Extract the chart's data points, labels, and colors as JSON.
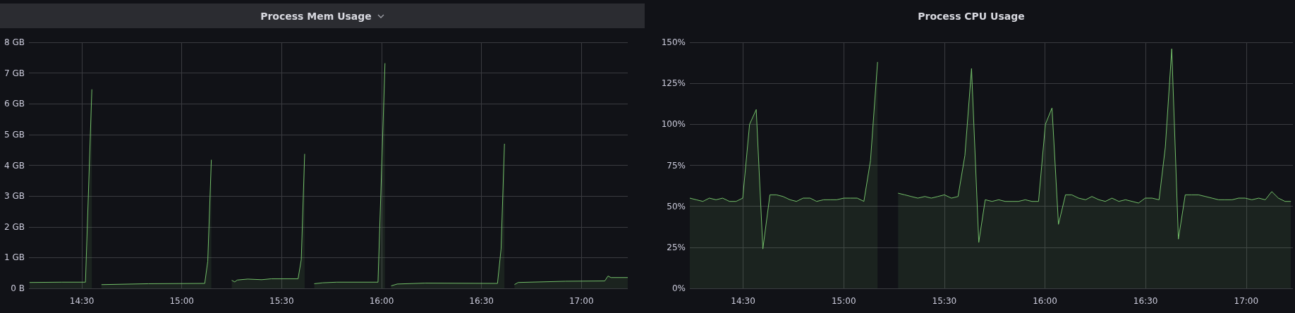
{
  "chart_data": [
    {
      "type": "area",
      "title": "Process Mem Usage",
      "x": [
        14.238,
        14.4,
        14.518,
        14.55,
        14.56,
        14.598,
        14.833,
        15.115,
        15.13,
        15.148,
        15.2,
        15.25,
        15.265,
        15.278,
        15.33,
        15.4,
        15.448,
        15.582,
        15.598,
        15.615,
        15.65,
        15.663,
        15.705,
        15.775,
        15.982,
        16.017,
        16.03,
        16.048,
        16.078,
        16.218,
        16.58,
        16.598,
        16.615,
        16.63,
        16.665,
        16.683,
        16.92,
        17.117,
        17.133,
        17.148,
        17.232
      ],
      "series": [
        {
          "color": "#73bf69",
          "values": [
            0.19,
            0.2,
            0.2,
            6.47,
            null,
            0.12,
            0.15,
            0.16,
            0.88,
            4.18,
            null,
            0.26,
            0.21,
            0.27,
            0.3,
            0.28,
            0.31,
            0.31,
            0.93,
            4.37,
            null,
            0.15,
            0.18,
            0.2,
            0.2,
            7.32,
            null,
            0.08,
            0.14,
            0.17,
            0.16,
            1.28,
            4.7,
            null,
            0.12,
            0.19,
            0.23,
            0.24,
            0.4,
            0.35,
            0.35
          ]
        }
      ],
      "xlim": [
        14.235,
        17.232
      ],
      "xticks": [
        {
          "value": 14.5,
          "label": "14:30"
        },
        {
          "value": 15,
          "label": "15:00"
        },
        {
          "value": 15.5,
          "label": "15:30"
        },
        {
          "value": 16,
          "label": "16:00"
        },
        {
          "value": 16.5,
          "label": "16:30"
        },
        {
          "value": 17,
          "label": "17:00"
        }
      ],
      "ylim": [
        0,
        8
      ],
      "yticks": [
        {
          "value": 0,
          "label": "0 B"
        },
        {
          "value": 1,
          "label": "1 GB"
        },
        {
          "value": 2,
          "label": "2 GB"
        },
        {
          "value": 3,
          "label": "3 GB"
        },
        {
          "value": 4,
          "label": "4 GB"
        },
        {
          "value": 5,
          "label": "5 GB"
        },
        {
          "value": 6,
          "label": "6 GB"
        },
        {
          "value": 7,
          "label": "7 GB"
        },
        {
          "value": 8,
          "label": "8 GB"
        }
      ],
      "grid": true
    },
    {
      "type": "area",
      "title": "Process CPU Usage",
      "x": [
        14.235,
        14.267,
        14.3,
        14.332,
        14.365,
        14.398,
        14.432,
        14.465,
        14.498,
        14.532,
        14.565,
        14.598,
        14.633,
        14.665,
        14.698,
        14.733,
        14.765,
        14.798,
        14.833,
        14.865,
        14.9,
        14.933,
        14.965,
        15.0,
        15.033,
        15.067,
        15.1,
        15.133,
        15.168,
        15.2,
        15.27,
        15.303,
        15.335,
        15.368,
        15.403,
        15.435,
        15.468,
        15.5,
        15.535,
        15.568,
        15.602,
        15.635,
        15.671,
        15.703,
        15.737,
        15.77,
        15.802,
        15.837,
        15.868,
        15.902,
        15.935,
        15.968,
        16.002,
        16.035,
        16.067,
        16.102,
        16.133,
        16.167,
        16.202,
        16.233,
        16.268,
        16.3,
        16.333,
        16.367,
        16.4,
        16.433,
        16.465,
        16.498,
        16.532,
        16.567,
        16.598,
        16.63,
        16.663,
        16.697,
        16.73,
        16.763,
        16.797,
        16.83,
        16.863,
        16.895,
        16.93,
        16.962,
        16.995,
        17.028,
        17.062,
        17.095,
        17.127,
        17.16,
        17.193,
        17.222
      ],
      "series": [
        {
          "color": "#73bf69",
          "values": [
            55,
            54,
            53,
            55,
            54,
            55,
            53,
            53,
            55,
            100,
            109,
            24,
            57,
            57,
            56,
            54,
            53,
            55,
            55,
            53,
            54,
            54,
            54,
            55,
            55,
            55,
            53,
            78,
            138,
            null,
            58,
            57,
            56,
            55,
            56,
            55,
            56,
            57,
            55,
            56,
            81,
            134,
            28,
            54,
            53,
            54,
            53,
            53,
            53,
            54,
            53,
            53,
            100,
            110,
            39,
            57,
            57,
            55,
            54,
            56,
            54,
            53,
            55,
            53,
            54,
            53,
            52,
            55,
            55,
            54,
            86,
            146,
            30,
            57,
            57,
            57,
            56,
            55,
            54,
            54,
            54,
            55,
            55,
            54,
            55,
            54,
            59,
            55,
            53,
            53
          ]
        }
      ],
      "xlim": [
        14.235,
        17.232
      ],
      "xticks": [
        {
          "value": 14.5,
          "label": "14:30"
        },
        {
          "value": 15,
          "label": "15:00"
        },
        {
          "value": 15.5,
          "label": "15:30"
        },
        {
          "value": 16,
          "label": "16:00"
        },
        {
          "value": 16.5,
          "label": "16:30"
        },
        {
          "value": 17,
          "label": "17:00"
        }
      ],
      "ylim": [
        0,
        150
      ],
      "yticks": [
        {
          "value": 0,
          "label": "0%"
        },
        {
          "value": 25,
          "label": "25%"
        },
        {
          "value": 50,
          "label": "50%"
        },
        {
          "value": 75,
          "label": "75%"
        },
        {
          "value": 100,
          "label": "100%"
        },
        {
          "value": 125,
          "label": "125%"
        },
        {
          "value": 150,
          "label": "150%"
        }
      ],
      "grid": true
    }
  ]
}
